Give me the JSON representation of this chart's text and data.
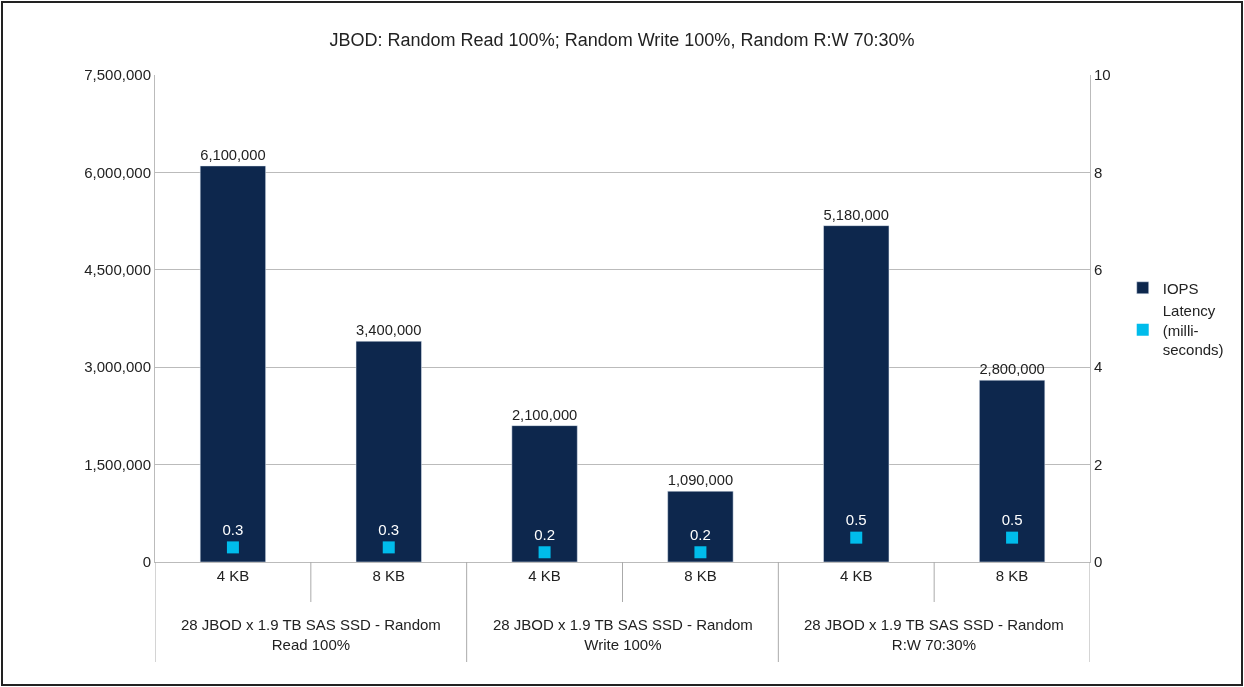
{
  "chart_data": {
    "type": "bar",
    "title": "JBOD: Random Read 100%; Random Write 100%, Random R:W 70:30%",
    "categories": [
      "4 KB",
      "8 KB",
      "4 KB",
      "8 KB",
      "4 KB",
      "8 KB"
    ],
    "series": [
      {
        "name": "IOPS",
        "color": "#0d274d",
        "values": [
          6100000,
          3400000,
          2100000,
          1090000,
          5180000,
          2800000
        ],
        "value_labels": [
          "6,100,000",
          "3,400,000",
          "2,100,000",
          "1,090,000",
          "5,180,000",
          "2,800,000"
        ]
      },
      {
        "name": "Latency (milli-seconds)",
        "type": "scatter",
        "axis": "y2",
        "marker": "square",
        "color": "#00bceb",
        "values": [
          0.3,
          0.3,
          0.2,
          0.2,
          0.5,
          0.5
        ],
        "value_labels": [
          "0.3",
          "0.3",
          "0.2",
          "0.2",
          "0.5",
          "0.5"
        ]
      }
    ],
    "ylim": [
      0,
      7500000
    ],
    "yticks": [
      0,
      {
        "value": 1500000,
        "label": "1,500,000"
      },
      {
        "value": 3000000,
        "label": "3,000,000"
      },
      {
        "value": 4500000,
        "label": "4,500,000"
      },
      {
        "value": 6000000,
        "label": "6,000,000"
      },
      {
        "value": 7500000,
        "label": "7,500,000"
      }
    ],
    "y2lim": [
      0,
      10
    ],
    "y2ticks": [
      0,
      2,
      4,
      6,
      8,
      10
    ],
    "annotations": [
      "28 JBOD x 1.9 TB SAS SSD - Random Read 100%",
      "28 JBOD x 1.9 TB SAS SSD - Random Write 100%",
      "28 JBOD x 1.9 TB SAS SSD - Random R:W 70:30%"
    ],
    "grid": "y",
    "legend": "right"
  }
}
